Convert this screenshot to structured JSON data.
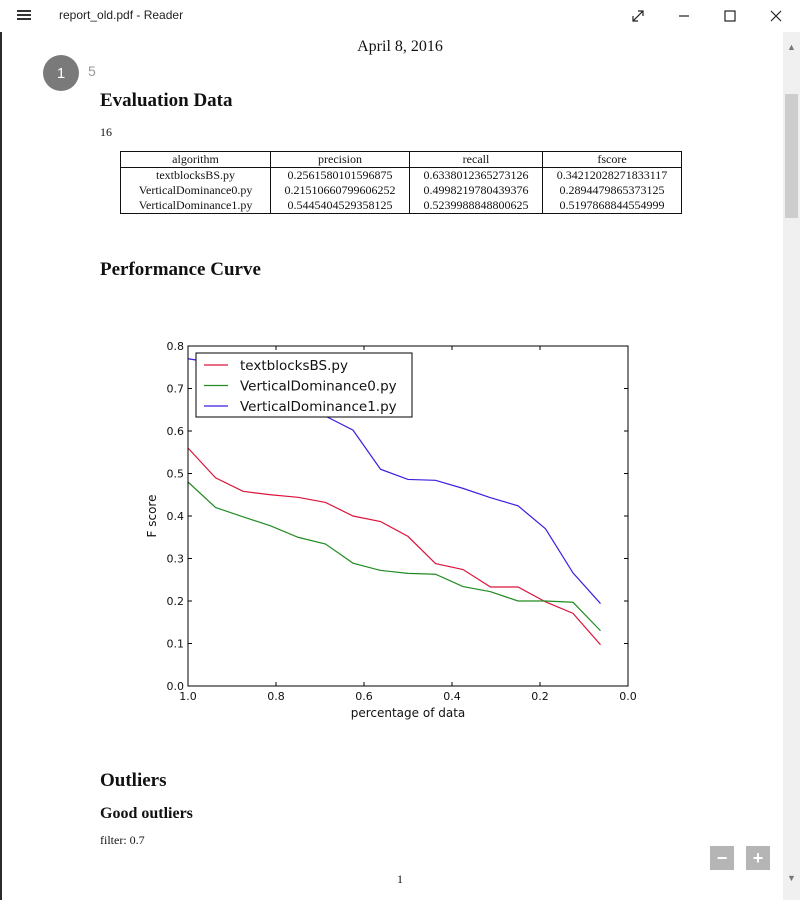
{
  "window": {
    "title": "report_old.pdf - Reader",
    "menu_icon": "hamburger-icon",
    "controls": [
      "expand-icon",
      "minimize-icon",
      "maximize-icon",
      "close-icon"
    ]
  },
  "viewer": {
    "current_page": "1",
    "total_pages": "5",
    "footer_page": "1"
  },
  "document": {
    "date": "April 8, 2016",
    "section_eval": "Evaluation Data",
    "eval_count": "16",
    "table": {
      "headers": [
        "algorithm",
        "precision",
        "recall",
        "fscore"
      ],
      "rows": [
        [
          "textblocksBS.py",
          "0.2561580101596875",
          "0.6338012365273126",
          "0.34212028271833117"
        ],
        [
          "VerticalDominance0.py",
          "0.21510660799606252",
          "0.4998219780439376",
          "0.2894479865373125"
        ],
        [
          "VerticalDominance1.py",
          "0.5445404529358125",
          "0.5239988848800625",
          "0.5197868844554999"
        ]
      ]
    },
    "section_curve": "Performance Curve",
    "section_outliers": "Outliers",
    "subsection_good": "Good outliers",
    "filter_text": "filter: 0.7"
  },
  "zoom": {
    "minus": "−",
    "plus": "+"
  },
  "chart_data": {
    "type": "line",
    "title": "",
    "xlabel": "percentage of data",
    "ylabel": "F score",
    "xlim": [
      1.0,
      0.0
    ],
    "ylim": [
      0.0,
      0.8
    ],
    "xticks": [
      "1.0",
      "0.8",
      "0.6",
      "0.4",
      "0.2",
      "0.0"
    ],
    "yticks": [
      "0.0",
      "0.1",
      "0.2",
      "0.3",
      "0.4",
      "0.5",
      "0.6",
      "0.7",
      "0.8"
    ],
    "legend_position": "top-left",
    "x": [
      1.0,
      0.9375,
      0.875,
      0.8125,
      0.75,
      0.6875,
      0.625,
      0.5625,
      0.5,
      0.4375,
      0.375,
      0.3125,
      0.25,
      0.1875,
      0.125,
      0.0625
    ],
    "series": [
      {
        "name": "textblocksBS.py",
        "color": "#dc143c",
        "values": [
          0.56,
          0.49,
          0.458,
          0.45,
          0.444,
          0.432,
          0.4,
          0.387,
          0.352,
          0.288,
          0.274,
          0.233,
          0.233,
          0.198,
          0.171,
          0.097
        ]
      },
      {
        "name": "VerticalDominance0.py",
        "color": "#228b22",
        "values": [
          0.48,
          0.42,
          0.398,
          0.377,
          0.35,
          0.334,
          0.289,
          0.272,
          0.265,
          0.263,
          0.234,
          0.222,
          0.2,
          0.2,
          0.197,
          0.13
        ]
      },
      {
        "name": "VerticalDominance1.py",
        "color": "#3a1fe0",
        "values": [
          0.77,
          0.76,
          0.72,
          0.69,
          0.665,
          0.635,
          0.602,
          0.51,
          0.486,
          0.484,
          0.465,
          0.443,
          0.424,
          0.37,
          0.266,
          0.194
        ]
      }
    ]
  }
}
